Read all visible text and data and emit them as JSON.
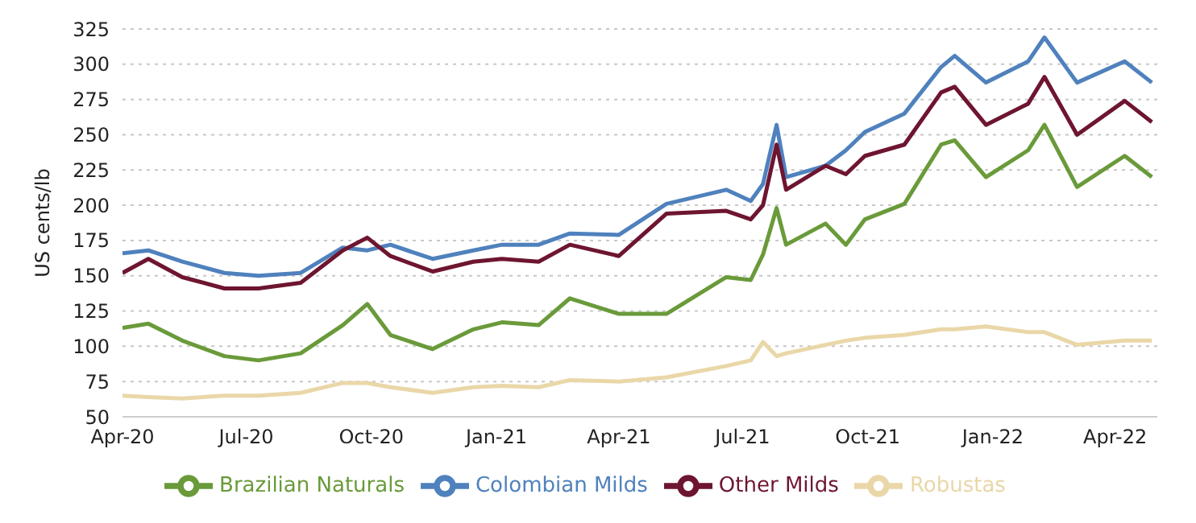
{
  "chart_data": {
    "type": "line",
    "ylabel": "US cents/lb",
    "x": [
      "2020-04-01",
      "2020-04-20",
      "2020-05-15",
      "2020-06-15",
      "2020-07-10",
      "2020-08-10",
      "2020-09-10",
      "2020-09-28",
      "2020-10-15",
      "2020-11-15",
      "2020-12-15",
      "2021-01-05",
      "2021-02-01",
      "2021-02-24",
      "2021-04-01",
      "2021-05-06",
      "2021-06-19",
      "2021-07-07",
      "2021-07-16",
      "2021-07-26",
      "2021-08-02",
      "2021-08-31",
      "2021-09-15",
      "2021-09-29",
      "2021-10-28",
      "2021-11-24",
      "2021-12-04",
      "2021-12-27",
      "2022-01-27",
      "2022-02-08",
      "2022-03-04",
      "2022-04-08",
      "2022-04-28"
    ],
    "series": [
      {
        "name": "Colombian Milds",
        "color": "#4f81bd",
        "values": [
          166,
          168,
          160,
          152,
          150,
          152,
          170,
          168,
          172,
          162,
          168,
          172,
          172,
          180,
          179,
          201,
          211,
          203,
          215,
          257,
          220,
          228,
          239,
          252,
          265,
          298,
          306,
          287,
          302,
          319,
          287,
          302,
          287
        ]
      },
      {
        "name": "Other Milds",
        "color": "#6e1530",
        "values": [
          152,
          162,
          149,
          141,
          141,
          145,
          168,
          177,
          164,
          153,
          160,
          162,
          160,
          172,
          164,
          194,
          196,
          190,
          200,
          243,
          211,
          228,
          222,
          235,
          243,
          280,
          284,
          257,
          272,
          291,
          250,
          274,
          259
        ]
      },
      {
        "name": "Brazilian Naturals",
        "color": "#6a9a3a",
        "values": [
          113,
          116,
          104,
          93,
          90,
          95,
          115,
          130,
          108,
          98,
          112,
          117,
          115,
          134,
          123,
          123,
          149,
          147,
          165,
          198,
          172,
          187,
          172,
          190,
          201,
          243,
          246,
          220,
          239,
          257,
          213,
          235,
          220
        ]
      },
      {
        "name": "Robustas",
        "color": "#ead7a8",
        "values": [
          65,
          64,
          63,
          65,
          65,
          67,
          74,
          74,
          71,
          67,
          71,
          72,
          71,
          76,
          75,
          78,
          86,
          90,
          103,
          93,
          95,
          101,
          104,
          106,
          108,
          112,
          112,
          114,
          110,
          110,
          101,
          104,
          104
        ]
      }
    ],
    "xlim": [
      "2020-04-01",
      "2022-05-02"
    ],
    "xticks": [
      {
        "value": "2020-04-01",
        "label": "Apr-20"
      },
      {
        "value": "2020-07-01",
        "label": "Jul-20"
      },
      {
        "value": "2020-10-01",
        "label": "Oct-20"
      },
      {
        "value": "2021-01-01",
        "label": "Jan-21"
      },
      {
        "value": "2021-04-01",
        "label": "Apr-21"
      },
      {
        "value": "2021-07-01",
        "label": "Jul-21"
      },
      {
        "value": "2021-10-01",
        "label": "Oct-21"
      },
      {
        "value": "2022-01-01",
        "label": "Jan-22"
      },
      {
        "value": "2022-04-01",
        "label": "Apr-22"
      }
    ],
    "ylim": [
      50,
      325
    ],
    "yticks": [
      50,
      75,
      100,
      125,
      150,
      175,
      200,
      225,
      250,
      275,
      300,
      325
    ],
    "grid": "y",
    "legend": "bottom",
    "marker": "none",
    "line_style": "solid"
  }
}
